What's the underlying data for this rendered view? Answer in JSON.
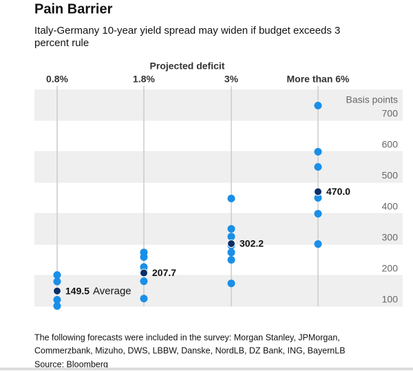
{
  "chart_data": {
    "type": "strip",
    "title": "Pain Barrier",
    "subtitle_lines": [
      "Italy-Germany 10-year yield spread may widen if budget exceeds 3",
      "percent rule"
    ],
    "x_label": "Projected deficit",
    "y_label": "Basis points",
    "categories": [
      "0.8%",
      "1.8%",
      "3%",
      "More than 6%"
    ],
    "points": [
      [
        201,
        180,
        121,
        101
      ],
      [
        274,
        259,
        227,
        212,
        181,
        125
      ],
      [
        448,
        350,
        325,
        296,
        274,
        250,
        174
      ],
      [
        748,
        599,
        550,
        450,
        399,
        301
      ]
    ],
    "averages": [
      149.5,
      207.7,
      302.2,
      470.0
    ],
    "average_labels": [
      "149.5",
      "207.7",
      "302.2",
      "470.0"
    ],
    "annotation": "Average",
    "point_color": "#1a8fe8",
    "average_color": "#0b2f66",
    "ylim": [
      100,
      800
    ],
    "yticks": [
      100,
      200,
      300,
      400,
      500,
      600,
      700
    ],
    "bands": true,
    "note_lines": [
      "The following forecasts were included in the survey: Morgan Stanley, JPMorgan,",
      "Commerzbank, Mizuho, DWS, LBBW, Danske, NordLB, DZ Bank, ING, BayernLB"
    ],
    "source": "Source: Bloomberg"
  }
}
